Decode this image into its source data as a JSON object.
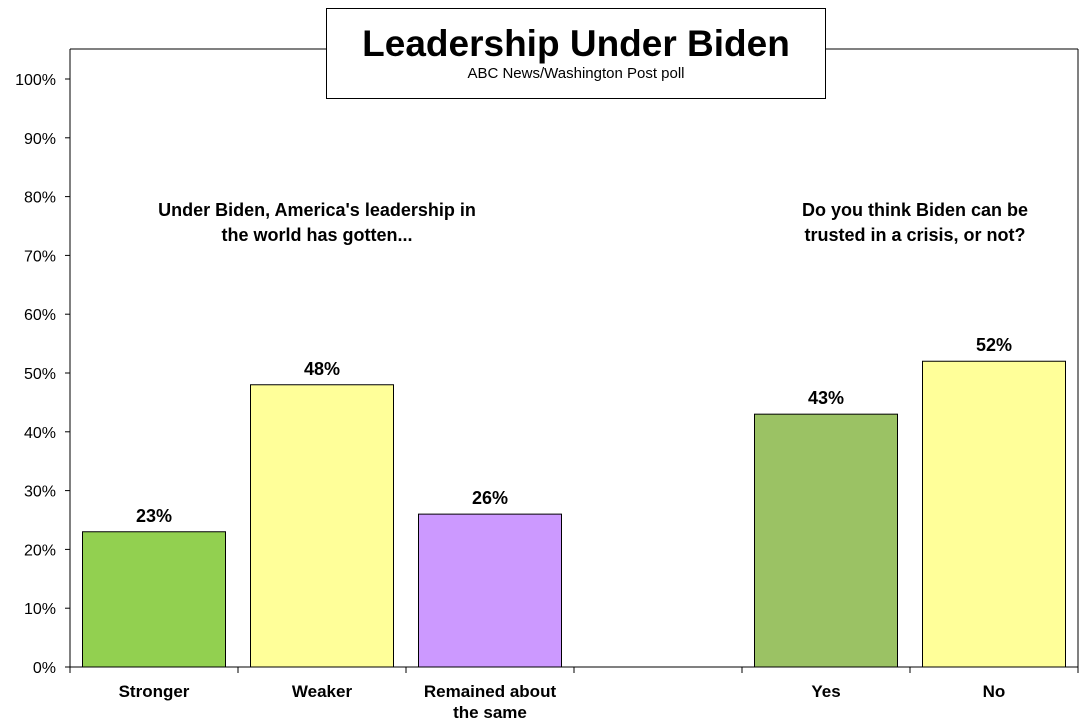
{
  "chart_data": {
    "type": "bar",
    "title": "Leadership Under Biden",
    "subtitle": "ABC News/Washington Post poll",
    "ylim": [
      0,
      100
    ],
    "yticks": [
      "0%",
      "10%",
      "20%",
      "30%",
      "40%",
      "50%",
      "60%",
      "70%",
      "80%",
      "90%",
      "100%"
    ],
    "grid": false,
    "categories": [
      "Stronger",
      "Weaker",
      "Remained about the same",
      "",
      "Yes",
      "No"
    ],
    "category_lines": [
      [
        "Stronger"
      ],
      [
        "Weaker"
      ],
      [
        "Remained about",
        "the same"
      ],
      [],
      [
        "Yes"
      ],
      [
        "No"
      ]
    ],
    "values": [
      23,
      48,
      26,
      null,
      43,
      52
    ],
    "value_labels": [
      "23%",
      "48%",
      "26%",
      "",
      "43%",
      "52%"
    ],
    "bar_colors": [
      "#92d050",
      "#ffff99",
      "#cc99ff",
      "",
      "#9bc264",
      "#ffff99"
    ],
    "annotations": [
      {
        "lines": [
          "Under Biden, America's leadership in",
          "the world has gotten..."
        ]
      },
      {
        "lines": [
          "Do you think Biden can be",
          "trusted in a crisis, or not?"
        ]
      }
    ]
  }
}
